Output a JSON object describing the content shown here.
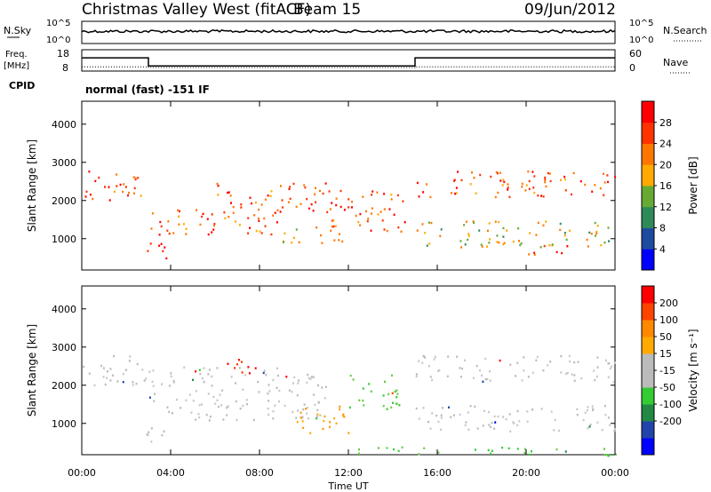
{
  "header": {
    "title": "Christmas Valley West (fitACF)",
    "beam": "Beam 15",
    "date": "09/Jun/2012"
  },
  "top_panels": {
    "nsky_label": "N.Sky",
    "nsearch_label": "N.Search",
    "nsky_ticks": [
      "10^5",
      "10^0"
    ],
    "freq_label_line1": "Freq.",
    "freq_label_line2": "[MHz]",
    "freq_ticks": [
      "18",
      "8"
    ],
    "nave_label": "Nave",
    "nave_ticks": [
      "60",
      "0"
    ],
    "cpid_label": "CPID",
    "cpid_text": "normal (fast) -151 IF"
  },
  "colors": {
    "power_scale": [
      "#0000ff",
      "#1e4aa0",
      "#2e8b57",
      "#66aa33",
      "#ffaa00",
      "#ff7700",
      "#ff3300",
      "#ff0000"
    ],
    "velocity_scale": [
      "#ff0000",
      "#ff4400",
      "#ff8800",
      "#ffaa00",
      "#bbbbbb",
      "#bbbbbb",
      "#33cc33",
      "#228844",
      "#2244aa",
      "#0000ff"
    ],
    "ground_grey": "#bbbbbb"
  },
  "chart_data": [
    {
      "type": "line",
      "panel": "N.Sky / N.Search",
      "ylim_label": [
        "10^0",
        "10^5"
      ],
      "description_series": [
        {
          "name": "N.Sky",
          "style": "solid",
          "level_fraction": 0.55
        },
        {
          "name": "N.Search",
          "style": "dotted",
          "level_fraction": 0.25
        }
      ]
    },
    {
      "type": "line",
      "panel": "Freq / Nave",
      "x": [
        "00:00",
        "03:00",
        "03:00",
        "15:00",
        "15:00",
        "24:00"
      ],
      "series": [
        {
          "name": "Freq.",
          "values": [
            14.2,
            14.2,
            10.4,
            10.4,
            14.2,
            14.2
          ]
        },
        {
          "name": "Nave",
          "values": [
            12,
            12,
            10,
            10,
            12,
            12
          ]
        }
      ],
      "ylim_freq": [
        8,
        18
      ],
      "ylim_nave": [
        0,
        60
      ]
    },
    {
      "type": "heatmap",
      "panel": "Power",
      "xlabel": "Time UT",
      "ylabel": "Slant Range [km]",
      "xlim": [
        0,
        24
      ],
      "ylim": [
        180,
        4600
      ],
      "x_ticks": [
        "00:00",
        "04:00",
        "08:00",
        "12:00",
        "16:00",
        "20:00",
        "00:00"
      ],
      "y_ticks": [
        1000,
        2000,
        3000,
        4000
      ],
      "colorbar_label": "Power [dB]",
      "colorbar_ticks": [
        "4",
        "8",
        "12",
        "16",
        "20",
        "24",
        "28"
      ],
      "colorbar_range": [
        0,
        32
      ],
      "scatter_bands": [
        {
          "t0": 0.0,
          "t1": 2.9,
          "r0": 2000,
          "r1": 2800,
          "level": 6
        },
        {
          "t0": 2.9,
          "t1": 4.0,
          "r0": 300,
          "r1": 900,
          "level": 7
        },
        {
          "t0": 3.0,
          "t1": 9.0,
          "r0": 1100,
          "r1": 1800,
          "level": 6
        },
        {
          "t0": 6.0,
          "t1": 11.0,
          "r0": 1700,
          "r1": 2500,
          "level": 6
        },
        {
          "t0": 11.0,
          "t1": 14.8,
          "r0": 1200,
          "r1": 2300,
          "level": 6
        },
        {
          "t0": 9.0,
          "t1": 12.0,
          "r0": 900,
          "r1": 1400,
          "level": 5
        },
        {
          "t0": 15.0,
          "t1": 24.0,
          "r0": 2100,
          "r1": 2800,
          "level": 6
        },
        {
          "t0": 15.0,
          "t1": 24.0,
          "r0": 800,
          "r1": 1500,
          "level": 4
        },
        {
          "t0": 20.0,
          "t1": 22.0,
          "r0": 600,
          "r1": 900,
          "level": 7
        }
      ]
    },
    {
      "type": "heatmap",
      "panel": "Velocity",
      "xlabel": "Time UT",
      "ylabel": "Slant Range [km]",
      "xlim": [
        0,
        24
      ],
      "ylim": [
        180,
        4600
      ],
      "x_ticks": [
        "00:00",
        "04:00",
        "08:00",
        "12:00",
        "16:00",
        "20:00",
        "00:00"
      ],
      "y_ticks": [
        1000,
        2000,
        3000,
        4000
      ],
      "colorbar_label": "Velocity [m s⁻¹]",
      "colorbar_ticks": [
        "-200",
        "-100",
        "-50",
        "-15",
        "15",
        "50",
        "100",
        "200"
      ],
      "colorbar_range": [
        -250,
        250
      ],
      "scatter_bands": [
        {
          "t0": 0.0,
          "t1": 2.9,
          "r0": 2000,
          "r1": 2800,
          "color": "ground"
        },
        {
          "t0": 2.9,
          "t1": 4.0,
          "r0": 300,
          "r1": 900,
          "color": "ground"
        },
        {
          "t0": 3.0,
          "t1": 11.0,
          "r0": 1100,
          "r1": 2500,
          "color": "ground"
        },
        {
          "t0": 6.5,
          "t1": 8.5,
          "r0": 2300,
          "r1": 2700,
          "color": "red"
        },
        {
          "t0": 9.5,
          "t1": 12.0,
          "r0": 700,
          "r1": 1500,
          "color": "orange"
        },
        {
          "t0": 12.0,
          "t1": 14.5,
          "r0": 1400,
          "r1": 2300,
          "color": "green"
        },
        {
          "t0": 15.0,
          "t1": 24.0,
          "r0": 2100,
          "r1": 2800,
          "color": "ground"
        },
        {
          "t0": 15.0,
          "t1": 24.0,
          "r0": 800,
          "r1": 1500,
          "color": "ground"
        },
        {
          "t0": 12.0,
          "t1": 24.0,
          "r0": 180,
          "r1": 400,
          "color": "green"
        }
      ]
    }
  ]
}
